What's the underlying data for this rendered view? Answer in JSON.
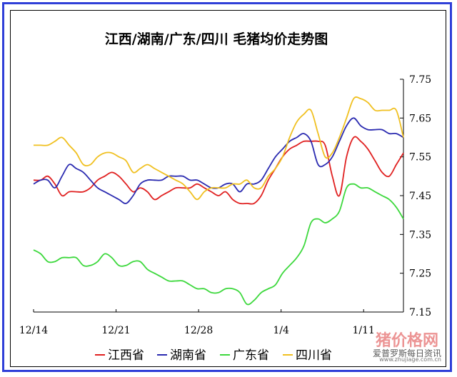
{
  "chart_data": {
    "type": "line",
    "title": "江西/湖南/广东/四川 毛猪均价走势图",
    "xlabel": "",
    "ylabel": "",
    "x_tick_labels": [
      "12/14",
      "12/21",
      "12/28",
      "1/4",
      "1/11"
    ],
    "y_tick_labels": [
      "7.75",
      "7.65",
      "7.55",
      "7.45",
      "7.35",
      "7.25",
      "7.15"
    ],
    "ylim": [
      7.15,
      7.75
    ],
    "grid": false,
    "legend_position": "bottom",
    "x": [
      0,
      1,
      2,
      3,
      4,
      5,
      6,
      7,
      8,
      9,
      10,
      11,
      12,
      13,
      14,
      15,
      16,
      17,
      18,
      19,
      20,
      21,
      22,
      23,
      24,
      25,
      26,
      27,
      28,
      29,
      30,
      31,
      32,
      33,
      34,
      35,
      36,
      37,
      38,
      39,
      40,
      41,
      42,
      43,
      44,
      45,
      46,
      47,
      48,
      49,
      50,
      51,
      52
    ],
    "series": [
      {
        "name": "江西省",
        "color": "#e02020",
        "values": [
          7.49,
          7.49,
          7.5,
          7.48,
          7.45,
          7.46,
          7.46,
          7.46,
          7.47,
          7.49,
          7.5,
          7.51,
          7.5,
          7.48,
          7.46,
          7.47,
          7.46,
          7.44,
          7.45,
          7.46,
          7.47,
          7.47,
          7.47,
          7.48,
          7.47,
          7.46,
          7.45,
          7.46,
          7.44,
          7.43,
          7.43,
          7.43,
          7.45,
          7.49,
          7.52,
          7.55,
          7.57,
          7.58,
          7.59,
          7.59,
          7.59,
          7.58,
          7.5,
          7.45,
          7.55,
          7.6,
          7.59,
          7.57,
          7.54,
          7.51,
          7.5,
          7.53,
          7.56
        ]
      },
      {
        "name": "湖南省",
        "color": "#2a2ab0",
        "values": [
          7.48,
          7.49,
          7.49,
          7.47,
          7.5,
          7.53,
          7.52,
          7.51,
          7.49,
          7.47,
          7.46,
          7.45,
          7.44,
          7.43,
          7.45,
          7.48,
          7.49,
          7.49,
          7.49,
          7.5,
          7.5,
          7.5,
          7.49,
          7.49,
          7.48,
          7.47,
          7.47,
          7.48,
          7.48,
          7.46,
          7.48,
          7.48,
          7.49,
          7.52,
          7.55,
          7.57,
          7.59,
          7.6,
          7.61,
          7.59,
          7.53,
          7.53,
          7.55,
          7.59,
          7.63,
          7.65,
          7.63,
          7.62,
          7.62,
          7.62,
          7.61,
          7.61,
          7.6
        ]
      },
      {
        "name": "广东省",
        "color": "#3cd83c",
        "values": [
          7.31,
          7.3,
          7.28,
          7.28,
          7.29,
          7.29,
          7.29,
          7.27,
          7.27,
          7.28,
          7.3,
          7.29,
          7.27,
          7.27,
          7.28,
          7.28,
          7.26,
          7.25,
          7.24,
          7.23,
          7.23,
          7.23,
          7.22,
          7.21,
          7.21,
          7.2,
          7.2,
          7.21,
          7.21,
          7.2,
          7.17,
          7.18,
          7.2,
          7.21,
          7.22,
          7.25,
          7.27,
          7.29,
          7.32,
          7.38,
          7.39,
          7.38,
          7.39,
          7.41,
          7.47,
          7.48,
          7.47,
          7.47,
          7.46,
          7.45,
          7.44,
          7.42,
          7.39
        ]
      },
      {
        "name": "四川省",
        "color": "#f0c020",
        "values": [
          7.58,
          7.58,
          7.58,
          7.59,
          7.6,
          7.58,
          7.56,
          7.53,
          7.53,
          7.55,
          7.56,
          7.56,
          7.55,
          7.54,
          7.51,
          7.52,
          7.53,
          7.52,
          7.51,
          7.5,
          7.49,
          7.48,
          7.46,
          7.44,
          7.46,
          7.47,
          7.47,
          7.47,
          7.48,
          7.48,
          7.49,
          7.47,
          7.47,
          7.5,
          7.52,
          7.55,
          7.6,
          7.64,
          7.66,
          7.67,
          7.61,
          7.55,
          7.56,
          7.6,
          7.65,
          7.7,
          7.7,
          7.69,
          7.67,
          7.67,
          7.67,
          7.67,
          7.6
        ]
      }
    ]
  },
  "watermark": {
    "brand": "猪价格网",
    "caption": "爱普罗斯每日资讯",
    "url": "www.zhujiage.com.cn"
  }
}
